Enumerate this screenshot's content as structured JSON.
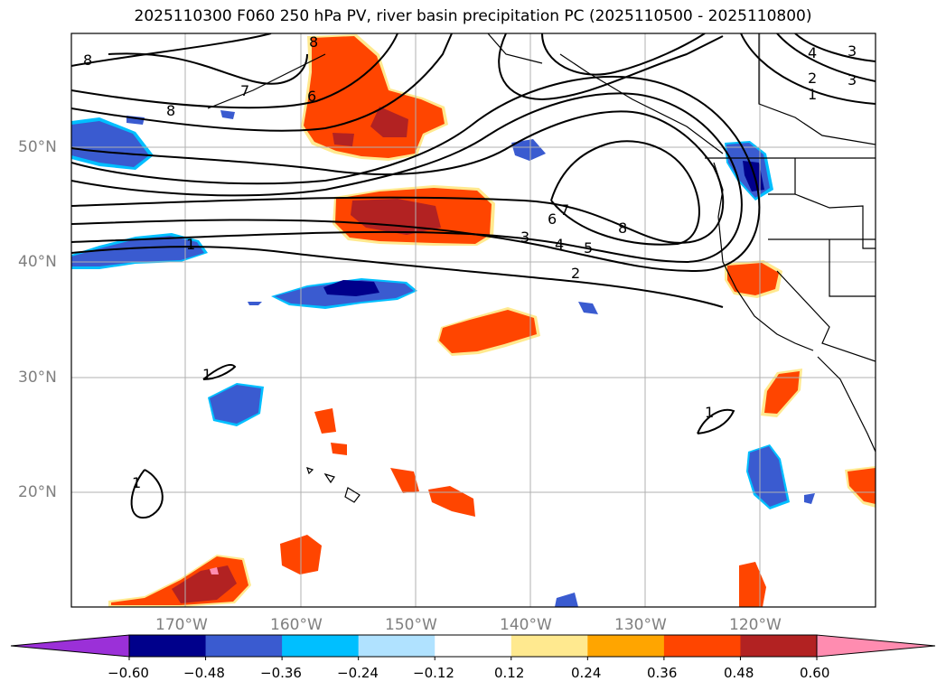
{
  "title": "2025110300 F060 250 hPa PV, river basin precipitation PC (2025110500 - 2025110800)",
  "lat_labels": [
    "50°N",
    "40°N",
    "30°N",
    "20°N"
  ],
  "lon_labels": [
    "170°W",
    "160°W",
    "150°W",
    "140°W",
    "130°W",
    "120°W"
  ],
  "colorbar": {
    "ticks": [
      "−0.60",
      "−0.48",
      "−0.36",
      "−0.24",
      "−0.12",
      "0.12",
      "0.24",
      "0.36",
      "0.48",
      "0.60"
    ],
    "colors": [
      "#9b30d8",
      "#00008b",
      "#3a5bd0",
      "#00bfff",
      "#b0e2ff",
      "#ffffff",
      "#ffe98f",
      "#ffa500",
      "#ff4500",
      "#b22222",
      "#ff8cb0"
    ]
  },
  "contour_labels": [
    "8",
    "8",
    "7",
    "6",
    "8",
    "1",
    "7",
    "6",
    "8",
    "3",
    "4",
    "5",
    "2",
    "4",
    "2",
    "1",
    "3",
    "3",
    "1",
    "1",
    "1"
  ],
  "colors": {
    "land_outline": "#000000",
    "grid": "#b0b0b0",
    "contour": "#000000"
  }
}
